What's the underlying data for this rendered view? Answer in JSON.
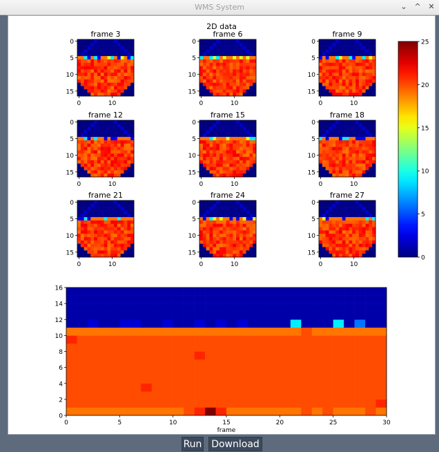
{
  "window": {
    "title": "WMS System",
    "controls": [
      "⌄",
      "^",
      "✕"
    ]
  },
  "figure": {
    "title": "2D data"
  },
  "buttons": {
    "run": "Run",
    "download": "Download"
  },
  "chart_data": [
    {
      "type": "heatmap",
      "title": "",
      "panels": [
        "frame 3",
        "frame 6",
        "frame 9",
        "frame 12",
        "frame 15",
        "frame 18",
        "frame 21",
        "frame 24",
        "frame 27"
      ],
      "grid_size": [
        17,
        17
      ],
      "xticks": [
        0,
        10
      ],
      "yticks": [
        0,
        5,
        10,
        15
      ],
      "colorbar": {
        "min": 0,
        "max": 25,
        "ticks": [
          0,
          5,
          10,
          15,
          20,
          25
        ]
      },
      "colormap": "jet"
    },
    {
      "type": "heatmap",
      "title": "",
      "xlabel": "frame",
      "ylabel": "",
      "xlim": [
        0,
        30
      ],
      "ylim": [
        0,
        16
      ],
      "xticks": [
        0,
        5,
        10,
        15,
        20,
        25,
        30
      ],
      "yticks": [
        0,
        2,
        4,
        6,
        8,
        10,
        12,
        14,
        16
      ],
      "rows": [
        {
          "y": 0,
          "values": [
            19,
            19,
            19,
            19,
            19,
            19,
            19,
            19,
            19,
            19,
            19,
            20,
            21,
            25,
            21,
            19,
            19,
            19,
            19,
            19,
            19,
            19,
            20,
            19,
            20,
            19,
            19,
            19,
            20,
            19
          ]
        },
        {
          "y": 1,
          "values": [
            20,
            20,
            20,
            20,
            20,
            20,
            20,
            20,
            20,
            20,
            20,
            20,
            20,
            20,
            20,
            20,
            20,
            20,
            20,
            20,
            20,
            20,
            20,
            20,
            20,
            20,
            20,
            20,
            20,
            21
          ]
        },
        {
          "y": 3,
          "values": [
            20,
            20,
            20,
            20,
            20,
            20,
            20,
            21,
            20,
            20,
            20,
            20,
            20,
            20,
            20,
            20,
            20,
            20,
            20,
            20,
            20,
            20,
            20,
            20,
            20,
            20,
            20,
            20,
            20,
            20
          ]
        },
        {
          "y": 7,
          "values": [
            20,
            20,
            20,
            20,
            20,
            20,
            20,
            20,
            20,
            20,
            20,
            20,
            21,
            20,
            20,
            20,
            20,
            20,
            20,
            20,
            20,
            20,
            20,
            20,
            20,
            20,
            20,
            20,
            20,
            20
          ]
        },
        {
          "y": 9,
          "values": [
            21,
            20,
            20,
            20,
            20,
            20,
            20,
            20,
            20,
            20,
            20,
            20,
            20,
            20,
            20,
            20,
            20,
            20,
            20,
            20,
            20,
            20,
            20,
            20,
            20,
            20,
            20,
            20,
            20,
            20
          ]
        },
        {
          "y": 10,
          "values": [
            19,
            19,
            19,
            19,
            19,
            19,
            19,
            19,
            19,
            19,
            19,
            19,
            19,
            19,
            19,
            19,
            19,
            19,
            19,
            19,
            19,
            19,
            20,
            19,
            19,
            19,
            19,
            19,
            19,
            19
          ]
        },
        {
          "y": 11,
          "values": [
            1,
            1,
            2,
            1,
            1,
            2,
            2,
            1,
            1,
            2,
            1,
            1,
            2,
            1,
            2,
            1,
            2,
            1,
            1,
            1,
            1,
            9,
            1,
            1,
            1,
            9,
            1,
            6,
            1,
            1
          ]
        }
      ],
      "base_value": 20,
      "background_value": 1
    }
  ]
}
